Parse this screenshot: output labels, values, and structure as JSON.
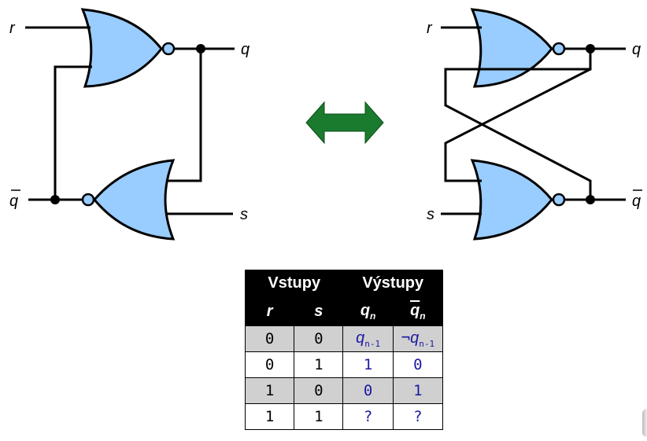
{
  "diagram": {
    "left": {
      "label_r": "r",
      "label_q": "q",
      "label_qbar": "q",
      "label_s": "s"
    },
    "right": {
      "label_r": "r",
      "label_q": "q",
      "label_qbar": "q",
      "label_s": "s"
    },
    "arrow_icon": "double-arrow-icon",
    "colors": {
      "gate_fill": "#99ccff",
      "arrow": "#1a7a2e"
    }
  },
  "truth_table": {
    "group_headers": [
      "Vstupy",
      "Výstupy"
    ],
    "var_headers": {
      "r": "r",
      "s": "s",
      "q": "q",
      "q_sub": "n",
      "qbar": "q",
      "qbar_sub": "n"
    },
    "rows": [
      {
        "r": "0",
        "s": "0",
        "q": "q",
        "q_sub": "n-1",
        "qbar_prefix": "¬",
        "qbar": "q",
        "qbar_sub": "n-1"
      },
      {
        "r": "0",
        "s": "1",
        "q": "1",
        "qbar": "0"
      },
      {
        "r": "1",
        "s": "0",
        "q": "0",
        "qbar": "1"
      },
      {
        "r": "1",
        "s": "1",
        "q": "?",
        "qbar": "?"
      }
    ]
  }
}
